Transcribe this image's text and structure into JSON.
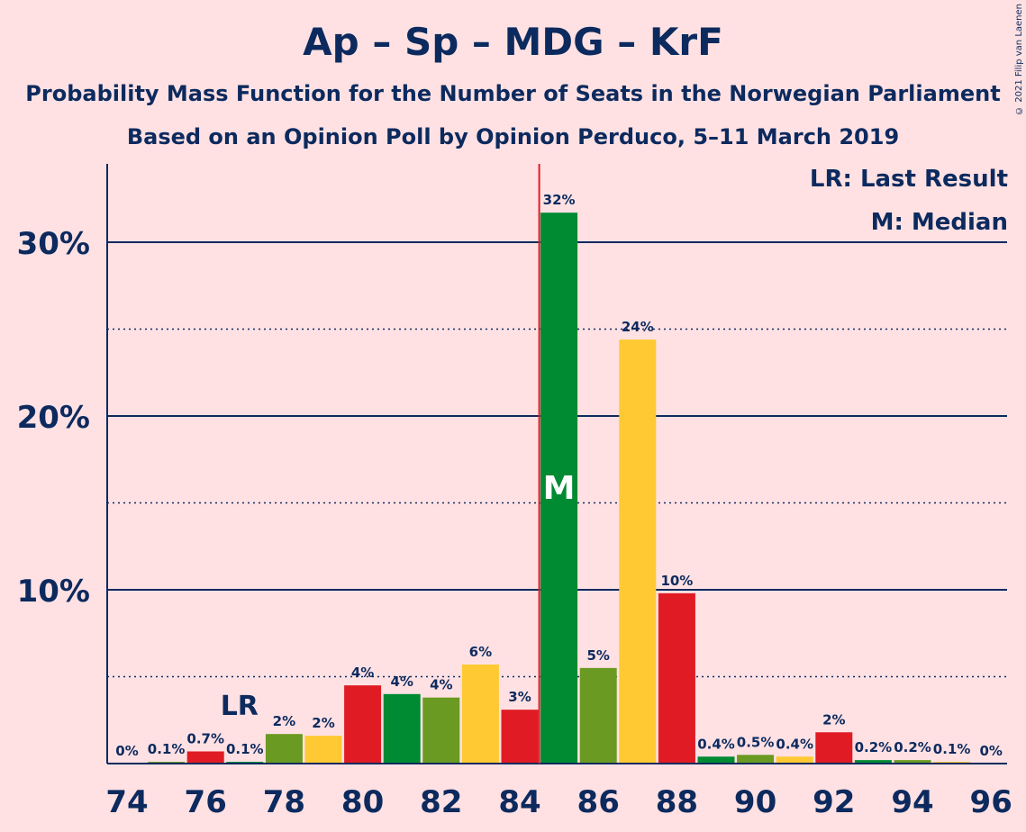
{
  "title": "Ap – Sp – MDG – KrF",
  "subtitle1": "Probability Mass Function for the Number of Seats in the Norwegian Parliament",
  "subtitle2": "Based on an Opinion Poll by Opinion Perduco, 5–11 March 2019",
  "copyright": "© 2021 Filip van Laenen",
  "legend": {
    "lr": "LR: Last Result",
    "median": "M: Median"
  },
  "markers": {
    "lr_label": "LR",
    "median_label": "M",
    "last_result_seat": 77,
    "median_seat": 85
  },
  "colors": {
    "green": "#008A32",
    "olive": "#6A9A22",
    "yellow": "#FFC933",
    "red": "#E01B24",
    "navy": "#0C2A5E",
    "background": "#FFE1E3"
  },
  "chart_data": {
    "type": "bar",
    "xlim": [
      74,
      96
    ],
    "ylim": [
      0,
      34
    ],
    "x_ticks": [
      "74",
      "76",
      "78",
      "80",
      "82",
      "84",
      "86",
      "88",
      "90",
      "92",
      "94",
      "96"
    ],
    "y_ticks": [
      "10%",
      "20%",
      "30%"
    ],
    "bars": [
      {
        "seat": 74,
        "value": 0,
        "label": "0%",
        "color": "green"
      },
      {
        "seat": 75,
        "value": 0.1,
        "label": "0.1%",
        "color": "olive"
      },
      {
        "seat": 76,
        "value": 0.7,
        "label": "0.7%",
        "color": "red"
      },
      {
        "seat": 77,
        "value": 0.1,
        "label": "0.1%",
        "color": "green"
      },
      {
        "seat": 78,
        "value": 1.7,
        "label": "2%",
        "color": "olive"
      },
      {
        "seat": 79,
        "value": 1.6,
        "label": "2%",
        "color": "yellow"
      },
      {
        "seat": 80,
        "value": 4.5,
        "label": "4%",
        "color": "red"
      },
      {
        "seat": 81,
        "value": 4.0,
        "label": "4%",
        "color": "green"
      },
      {
        "seat": 82,
        "value": 3.8,
        "label": "4%",
        "color": "olive"
      },
      {
        "seat": 83,
        "value": 5.7,
        "label": "6%",
        "color": "yellow"
      },
      {
        "seat": 84,
        "value": 3.1,
        "label": "3%",
        "color": "red"
      },
      {
        "seat": 85,
        "value": 31.7,
        "label": "32%",
        "color": "green"
      },
      {
        "seat": 86,
        "value": 5.5,
        "label": "5%",
        "color": "olive"
      },
      {
        "seat": 87,
        "value": 24.4,
        "label": "24%",
        "color": "yellow"
      },
      {
        "seat": 88,
        "value": 9.8,
        "label": "10%",
        "color": "red"
      },
      {
        "seat": 89,
        "value": 0.4,
        "label": "0.4%",
        "color": "green"
      },
      {
        "seat": 90,
        "value": 0.5,
        "label": "0.5%",
        "color": "olive"
      },
      {
        "seat": 91,
        "value": 0.4,
        "label": "0.4%",
        "color": "yellow"
      },
      {
        "seat": 92,
        "value": 1.8,
        "label": "2%",
        "color": "red"
      },
      {
        "seat": 93,
        "value": 0.2,
        "label": "0.2%",
        "color": "green"
      },
      {
        "seat": 94,
        "value": 0.2,
        "label": "0.2%",
        "color": "olive"
      },
      {
        "seat": 95,
        "value": 0.1,
        "label": "0.1%",
        "color": "yellow"
      },
      {
        "seat": 96,
        "value": 0,
        "label": "0%",
        "color": "red"
      }
    ]
  }
}
